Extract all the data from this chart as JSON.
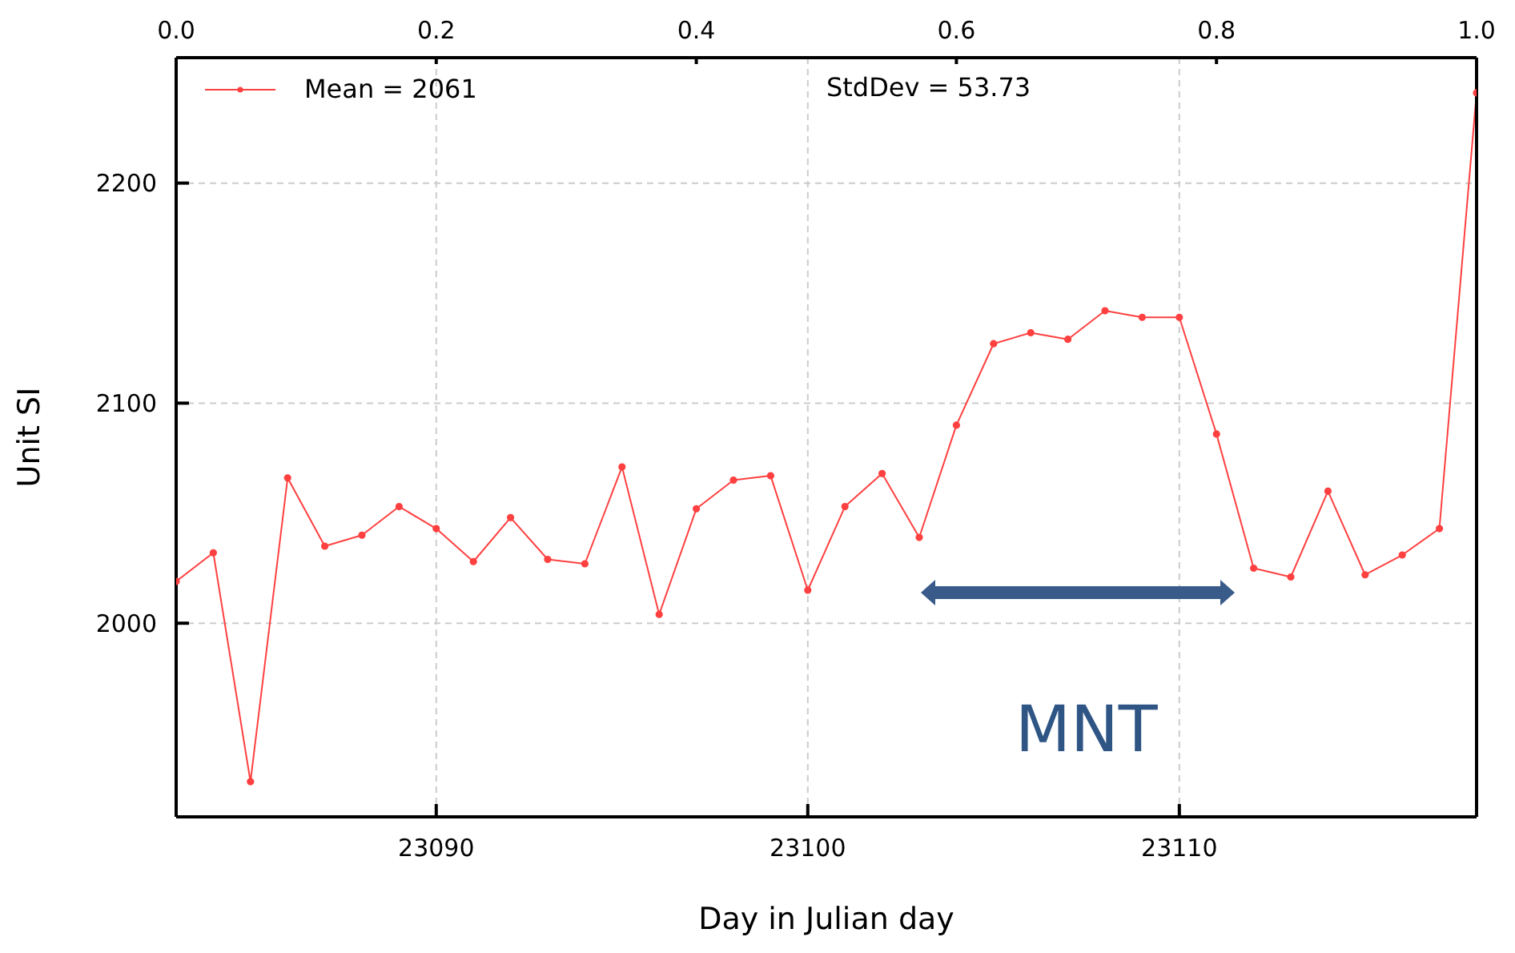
{
  "chart_data": {
    "type": "line",
    "xlabel": "Day in Julian day",
    "ylabel": "Unit SI",
    "x": [
      23083,
      23084,
      23085,
      23086,
      23087,
      23088,
      23089,
      23090,
      23091,
      23092,
      23093,
      23094,
      23095,
      23096,
      23097,
      23098,
      23099,
      23100,
      23101,
      23102,
      23103,
      23104,
      23105,
      23106,
      23107,
      23108,
      23109,
      23110,
      23111,
      23112,
      23113,
      23114,
      23115,
      23116,
      23117,
      23118
    ],
    "series": [
      {
        "name": "Mean = 2061",
        "color": "#ff4040",
        "values": [
          2019,
          2032,
          1928,
          2066,
          2035,
          2040,
          2053,
          2043,
          2028,
          2048,
          2029,
          2027,
          2071,
          2004,
          2052,
          2065,
          2067,
          2015,
          2053,
          2068,
          2039,
          2090,
          2127,
          2132,
          2129,
          2142,
          2139,
          2139,
          2086,
          2025,
          2021,
          2060,
          2022,
          2031,
          2043,
          2241
        ]
      }
    ],
    "xlim": [
      23083,
      23118
    ],
    "xticks": [
      23090,
      23100,
      23110
    ],
    "x2lim": [
      0,
      1
    ],
    "x2ticks": [
      {
        "value": 0,
        "label": "0.0"
      },
      {
        "value": 0.2,
        "label": "0.2"
      },
      {
        "value": 0.4,
        "label": "0.4"
      },
      {
        "value": 0.6,
        "label": "0.6"
      },
      {
        "value": 0.8,
        "label": "0.8"
      },
      {
        "value": 1,
        "label": "1.0"
      }
    ],
    "ylim": [
      1912,
      2257
    ],
    "yticks": [
      2000,
      2100,
      2200
    ],
    "annotations": [
      "StdDev = 53.73",
      "MNT"
    ],
    "grid": true,
    "legend": "top left",
    "marker": "circle",
    "line_style": "solid"
  }
}
